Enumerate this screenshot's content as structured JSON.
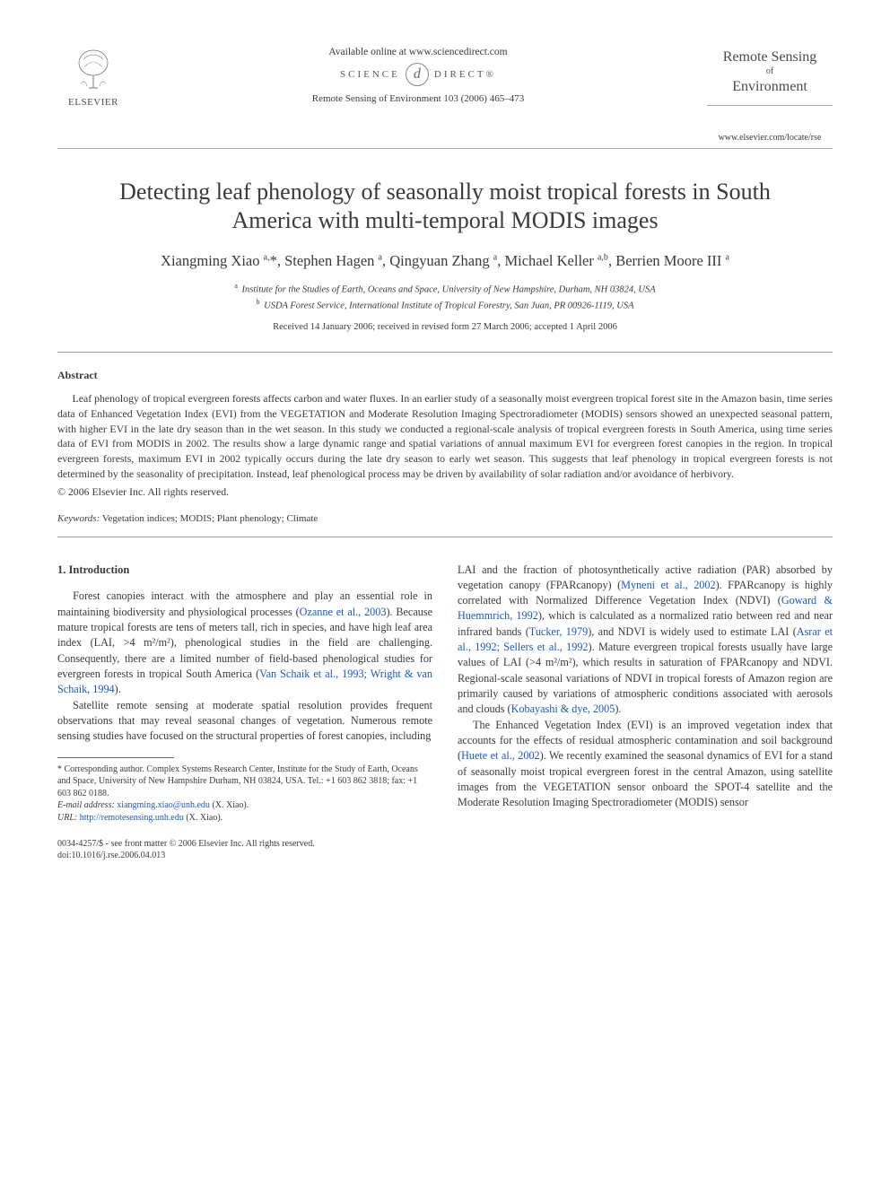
{
  "header": {
    "publisher_name": "ELSEVIER",
    "available_line": "Available online at www.sciencedirect.com",
    "sd_left": "SCIENCE",
    "sd_right": "DIRECT®",
    "sd_glyph": "d",
    "citation": "Remote Sensing of Environment 103 (2006) 465–473",
    "journal_line1": "Remote Sensing",
    "journal_of": "of",
    "journal_line2": "Environment",
    "journal_url": "www.elsevier.com/locate/rse"
  },
  "title": "Detecting leaf phenology of seasonally moist tropical forests in South America with multi-temporal MODIS images",
  "authors_html": "Xiangming Xiao <sup>a,</sup>*, Stephen Hagen <sup>a</sup>, Qingyuan Zhang <sup>a</sup>, Michael Keller <sup>a,b</sup>, Berrien Moore III <sup>a</sup>",
  "affiliations": {
    "a": "Institute for the Studies of Earth, Oceans and Space, University of New Hampshire, Durham, NH 03824, USA",
    "b": "USDA Forest Service, International Institute of Tropical Forestry, San Juan, PR 00926-1119, USA"
  },
  "dates": "Received 14 January 2006; received in revised form 27 March 2006; accepted 1 April 2006",
  "abstract": {
    "heading": "Abstract",
    "body": "Leaf phenology of tropical evergreen forests affects carbon and water fluxes. In an earlier study of a seasonally moist evergreen tropical forest site in the Amazon basin, time series data of Enhanced Vegetation Index (EVI) from the VEGETATION and Moderate Resolution Imaging Spectroradiometer (MODIS) sensors showed an unexpected seasonal pattern, with higher EVI in the late dry season than in the wet season. In this study we conducted a regional-scale analysis of tropical evergreen forests in South America, using time series data of EVI from MODIS in 2002. The results show a large dynamic range and spatial variations of annual maximum EVI for evergreen forest canopies in the region. In tropical evergreen forests, maximum EVI in 2002 typically occurs during the late dry season to early wet season. This suggests that leaf phenology in tropical evergreen forests is not determined by the seasonality of precipitation. Instead, leaf phenological process may be driven by availability of solar radiation and/or avoidance of herbivory.",
    "copyright": "© 2006 Elsevier Inc. All rights reserved."
  },
  "keywords": {
    "label": "Keywords:",
    "text": "Vegetation indices; MODIS; Plant phenology; Climate"
  },
  "section1": {
    "heading": "1. Introduction",
    "p1_pre": "Forest canopies interact with the atmosphere and play an essential role in maintaining biodiversity and physiological processes (",
    "p1_c1": "Ozanne et al., 2003",
    "p1_mid": "). Because mature tropical forests are tens of meters tall, rich in species, and have high leaf area index (LAI, >4 m²/m²), phenological studies in the field are challenging. Consequently, there are a limited number of field-based phenological studies for evergreen forests in tropical South America (",
    "p1_c2": "Van Schaik et al., 1993; Wright & van Schaik, 1994",
    "p1_post": ").",
    "p2": "Satellite remote sensing at moderate spatial resolution provides frequent observations that may reveal seasonal changes of vegetation. Numerous remote sensing studies have focused on the structural properties of forest canopies, including",
    "col2_p1_pre": "LAI and the fraction of photosynthetically active radiation (PAR) absorbed by vegetation canopy (FPARcanopy) (",
    "col2_p1_c1": "Myneni et al., 2002",
    "col2_p1_a": "). FPARcanopy is highly correlated with Normalized Difference Vegetation Index (NDVI) (",
    "col2_p1_c2": "Goward & Huemmrich, 1992",
    "col2_p1_b": "), which is calculated as a normalized ratio between red and near infrared bands (",
    "col2_p1_c3": "Tucker, 1979",
    "col2_p1_c": "), and NDVI is widely used to estimate LAI (",
    "col2_p1_c4": "Asrar et al., 1992; Sellers et al., 1992",
    "col2_p1_d": "). Mature evergreen tropical forests usually have large values of LAI (>4 m²/m²), which results in saturation of FPARcanopy and NDVI. Regional-scale seasonal variations of NDVI in tropical forests of Amazon region are primarily caused by variations of atmospheric conditions associated with aerosols and clouds (",
    "col2_p1_c5": "Kobayashi & dye, 2005",
    "col2_p1_e": ").",
    "col2_p2_pre": "The Enhanced Vegetation Index (EVI) is an improved vegetation index that accounts for the effects of residual atmospheric contamination and soil background (",
    "col2_p2_c1": "Huete et al., 2002",
    "col2_p2_post": "). We recently examined the seasonal dynamics of EVI for a stand of seasonally moist tropical evergreen forest in the central Amazon, using satellite images from the VEGETATION sensor onboard the SPOT-4 satellite and the Moderate Resolution Imaging Spectroradiometer (MODIS) sensor"
  },
  "footnotes": {
    "corr": "* Corresponding author. Complex Systems Research Center, Institute for the Study of Earth, Oceans and Space, University of New Hampshire Durham, NH 03824, USA. Tel.: +1 603 862 3818; fax: +1 603 862 0188.",
    "email_label": "E-mail address:",
    "email": "xiangming.xiao@unh.edu",
    "email_who": "(X. Xiao).",
    "url_label": "URL:",
    "url": "http://remotesensing.unh.edu",
    "url_who": "(X. Xiao)."
  },
  "bottom": {
    "l1": "0034-4257/$ - see front matter © 2006 Elsevier Inc. All rights reserved.",
    "l2": "doi:10.1016/j.rse.2006.04.013"
  },
  "colors": {
    "text": "#3a3a3a",
    "link": "#1a57c4",
    "rule": "#999999",
    "background": "#ffffff"
  }
}
